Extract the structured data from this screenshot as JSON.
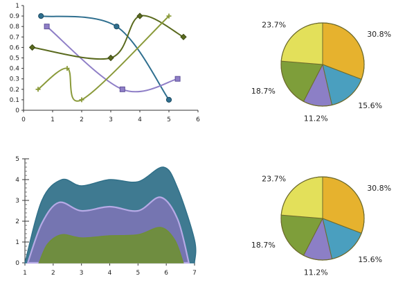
{
  "chart_data": [
    {
      "type": "line",
      "smooth": true,
      "xlim": [
        0,
        6
      ],
      "ylim": [
        0,
        1
      ],
      "xticks": [
        "0",
        "1",
        "2",
        "3",
        "4",
        "5",
        "6"
      ],
      "yticks": [
        "0",
        "0.1",
        "0.2",
        "0.3",
        "0.4",
        "0.5",
        "0.6",
        "0.7",
        "0.8",
        "0.9",
        "1"
      ],
      "series": [
        {
          "color": "#2f6f8f",
          "marker": "circle",
          "points": [
            [
              0.6,
              0.9
            ],
            [
              3.2,
              0.8
            ],
            [
              5.0,
              0.1
            ]
          ]
        },
        {
          "color": "#8f7fc7",
          "marker": "square",
          "points": [
            [
              0.8,
              0.8
            ],
            [
              3.4,
              0.2
            ],
            [
              5.3,
              0.3
            ]
          ]
        },
        {
          "color": "#5a6a1e",
          "marker": "diamond",
          "points": [
            [
              0.3,
              0.6
            ],
            [
              3.0,
              0.5
            ],
            [
              4.0,
              0.9
            ],
            [
              5.5,
              0.7
            ]
          ]
        },
        {
          "color": "#8a9a3a",
          "marker": "plus",
          "points": [
            [
              0.5,
              0.2
            ],
            [
              1.5,
              0.4
            ],
            [
              2.0,
              0.1
            ],
            [
              5.0,
              0.9
            ]
          ]
        }
      ]
    },
    {
      "type": "pie",
      "slices": [
        {
          "label": "30.8%",
          "value": 30.8,
          "color": "#e6b22e"
        },
        {
          "label": "15.6%",
          "value": 15.6,
          "color": "#4a9fbf"
        },
        {
          "label": "11.2%",
          "value": 11.2,
          "color": "#8c7fc6"
        },
        {
          "label": "18.7%",
          "value": 18.7,
          "color": "#7e9e3a"
        },
        {
          "label": "23.7%",
          "value": 23.7,
          "color": "#e3e05a"
        }
      ]
    },
    {
      "type": "area",
      "stacked": true,
      "smooth": true,
      "xlim": [
        1,
        7
      ],
      "ylim": [
        0,
        5
      ],
      "xticks": [
        "1",
        "2",
        "3",
        "4",
        "5",
        "6",
        "7"
      ],
      "yticks": [
        "0",
        "1",
        "2",
        "3",
        "4",
        "5"
      ],
      "series": [
        {
          "color": "#2f6f88",
          "stroke": "#2f6f88",
          "points": [
            [
              1.0,
              0
            ],
            [
              1.6,
              3.0
            ],
            [
              2.3,
              4.0
            ],
            [
              3.0,
              3.7
            ],
            [
              4.0,
              4.0
            ],
            [
              5.0,
              3.9
            ],
            [
              5.9,
              4.6
            ],
            [
              6.4,
              3.6
            ],
            [
              7.0,
              1.1
            ],
            [
              7.0,
              0
            ]
          ]
        },
        {
          "color": "#7a74b4",
          "stroke": "#b6aae6",
          "points": [
            [
              1.1,
              0
            ],
            [
              1.6,
              1.9
            ],
            [
              2.2,
              2.9
            ],
            [
              3.0,
              2.5
            ],
            [
              4.0,
              2.7
            ],
            [
              5.0,
              2.5
            ],
            [
              5.8,
              3.15
            ],
            [
              6.4,
              2.1
            ],
            [
              6.8,
              0
            ]
          ]
        },
        {
          "color": "#6f8f36",
          "stroke": "#6f8f36",
          "points": [
            [
              1.5,
              0
            ],
            [
              1.8,
              0.9
            ],
            [
              2.3,
              1.35
            ],
            [
              3.0,
              1.2
            ],
            [
              4.0,
              1.3
            ],
            [
              5.0,
              1.35
            ],
            [
              5.8,
              1.7
            ],
            [
              6.3,
              1.1
            ],
            [
              6.6,
              0
            ]
          ]
        }
      ]
    },
    {
      "type": "pie",
      "slices": [
        {
          "label": "30.8%",
          "value": 30.8,
          "color": "#e6b22e"
        },
        {
          "label": "15.6%",
          "value": 15.6,
          "color": "#4a9fbf"
        },
        {
          "label": "11.2%",
          "value": 11.2,
          "color": "#8c7fc6"
        },
        {
          "label": "18.7%",
          "value": 18.7,
          "color": "#7e9e3a"
        },
        {
          "label": "23.7%",
          "value": 23.7,
          "color": "#e3e05a"
        }
      ]
    }
  ]
}
